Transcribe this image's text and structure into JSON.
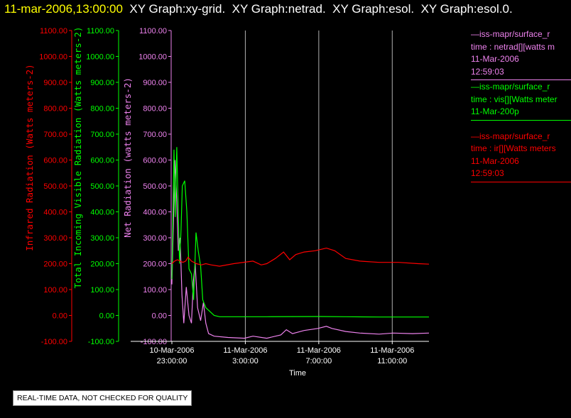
{
  "header": {
    "timestamp": "11-mar-2006,13:00:00",
    "graphs": [
      "XY Graph:xy-grid.",
      "XY Graph:netrad.",
      "XY Graph:esol.",
      "XY Graph:esol.0."
    ]
  },
  "notice": "REAL-TIME DATA, NOT CHECKED FOR QUALITY",
  "legend": [
    {
      "source": "—iss-mapr/surface_r",
      "variable": "time : netrad[][watts m",
      "date": "11-Mar-2006",
      "time": "12:59:03",
      "color": "#ee82ee"
    },
    {
      "source": "—iss-mapr/surface_r",
      "variable": "time : vis[][Watts meter",
      "date": "11-Mar-200p",
      "time": "",
      "color": "#00ff00"
    },
    {
      "source": "—iss-mapr/surface_r",
      "variable": "time : ir[][Watts meters",
      "date": "11-Mar-2006",
      "time": "12:59:03",
      "color": "#ff0000"
    }
  ],
  "chart_data": {
    "type": "line",
    "xlabel": "Time",
    "x_ticks": [
      {
        "label": [
          "10-Mar-2006",
          "23:00:00"
        ],
        "x": "2006-03-10 23:00"
      },
      {
        "label": [
          "11-Mar-2006",
          "3:00:00"
        ],
        "x": "2006-03-11 03:00"
      },
      {
        "label": [
          "11-Mar-2006",
          "7:00:00"
        ],
        "x": "2006-03-11 07:00"
      },
      {
        "label": [
          "11-Mar-2006",
          "11:00:00"
        ],
        "x": "2006-03-11 11:00"
      }
    ],
    "xlim": [
      "2006-03-10 23:00",
      "2006-03-11 13:00"
    ],
    "grid": "vertical",
    "axes": [
      {
        "id": "ir",
        "label": "Infrared Radiation (Watts meters-2)",
        "color": "#ff0000",
        "ylim": [
          -100,
          1100
        ],
        "ticks": [
          "-100.00",
          "0.00",
          "100.00",
          "200.00",
          "300.00",
          "400.00",
          "500.00",
          "600.00",
          "700.00",
          "800.00",
          "900.00",
          "1000.00",
          "1100.00"
        ]
      },
      {
        "id": "vis",
        "label": "Total Incoming Visible Radiation (Watts meters-2)",
        "color": "#00ff00",
        "ylim": [
          -100,
          1100
        ],
        "ticks": [
          "-100.00",
          "0.00",
          "100.00",
          "200.00",
          "300.00",
          "400.00",
          "500.00",
          "600.00",
          "700.00",
          "800.00",
          "900.00",
          "1000.00",
          "1100.00"
        ]
      },
      {
        "id": "netrad",
        "label": "Net Radiation (watts meters-2)",
        "color": "#ee82ee",
        "ylim": [
          -100,
          1100
        ],
        "ticks": [
          "-100.00",
          "0.00",
          "100.00",
          "200.00",
          "300.00",
          "400.00",
          "500.00",
          "600.00",
          "700.00",
          "800.00",
          "900.00",
          "1000.00",
          "1100.00"
        ]
      }
    ],
    "series": [
      {
        "name": "time : netrad[][watts m",
        "axis": "netrad",
        "color": "#ee82ee",
        "x": [
          "2006-03-10 23:00",
          "2006-03-10 23:10",
          "2006-03-10 23:16",
          "2006-03-10 23:21",
          "2006-03-10 23:27",
          "2006-03-10 23:33",
          "2006-03-10 23:39",
          "2006-03-10 23:47",
          "2006-03-10 23:56",
          "2006-03-11 00:04",
          "2006-03-11 00:10",
          "2006-03-11 00:16",
          "2006-03-11 00:24",
          "2006-03-11 00:34",
          "2006-03-11 00:43",
          "2006-03-11 00:51",
          "2006-03-11 01:00",
          "2006-03-11 01:18",
          "2006-03-11 02:03",
          "2006-03-11 02:57",
          "2006-03-11 03:25",
          "2006-03-11 04:10",
          "2006-03-11 04:56",
          "2006-03-11 05:14",
          "2006-03-11 05:34",
          "2006-03-11 06:12",
          "2006-03-11 06:57",
          "2006-03-11 07:25",
          "2006-03-11 07:43",
          "2006-03-11 08:28",
          "2006-03-11 09:14",
          "2006-03-11 10:17",
          "2006-03-11 11:03",
          "2006-03-11 12:06",
          "2006-03-11 13:00"
        ],
        "values": [
          120,
          600,
          440,
          250,
          300,
          80,
          -30,
          110,
          0,
          -30,
          130,
          200,
          30,
          -20,
          50,
          -30,
          -70,
          -80,
          -85,
          -88,
          -80,
          -88,
          -75,
          -55,
          -70,
          -58,
          -50,
          -42,
          -50,
          -62,
          -68,
          -72,
          -68,
          -70,
          -68
        ]
      },
      {
        "name": "time : vis[][Watts meter",
        "axis": "vis",
        "color": "#00ff00",
        "x": [
          "2006-03-10 23:00",
          "2006-03-10 23:07",
          "2006-03-10 23:11",
          "2006-03-10 23:16",
          "2006-03-10 23:20",
          "2006-03-10 23:25",
          "2006-03-10 23:30",
          "2006-03-10 23:34",
          "2006-03-10 23:42",
          "2006-03-10 23:49",
          "2006-03-10 23:56",
          "2006-03-11 00:04",
          "2006-03-11 00:11",
          "2006-03-11 00:19",
          "2006-03-11 00:26",
          "2006-03-11 00:34",
          "2006-03-11 00:41",
          "2006-03-11 00:51",
          "2006-03-11 01:00",
          "2006-03-11 01:18",
          "2006-03-11 01:36",
          "2006-03-11 02:03",
          "2006-03-11 04:10",
          "2006-03-11 07:03",
          "2006-03-11 08:28",
          "2006-03-11 10:17",
          "2006-03-11 13:00"
        ],
        "values": [
          140,
          640,
          380,
          650,
          450,
          200,
          330,
          500,
          520,
          400,
          180,
          160,
          60,
          320,
          250,
          190,
          60,
          30,
          20,
          0,
          -5,
          -5,
          -5,
          -4,
          -5,
          -6,
          -6
        ]
      },
      {
        "name": "time : ir[][Watts meters",
        "axis": "ir",
        "color": "#ff0000",
        "x": [
          "2006-03-10 23:00",
          "2006-03-10 23:09",
          "2006-03-10 23:18",
          "2006-03-10 23:27",
          "2006-03-10 23:36",
          "2006-03-10 23:45",
          "2006-03-10 23:53",
          "2006-03-11 00:04",
          "2006-03-11 00:20",
          "2006-03-11 00:36",
          "2006-03-11 00:51",
          "2006-03-11 01:09",
          "2006-03-11 01:36",
          "2006-03-11 02:22",
          "2006-03-11 03:25",
          "2006-03-11 03:52",
          "2006-03-11 04:10",
          "2006-03-11 04:38",
          "2006-03-11 05:05",
          "2006-03-11 05:25",
          "2006-03-11 05:45",
          "2006-03-11 06:12",
          "2006-03-11 06:48",
          "2006-03-11 07:25",
          "2006-03-11 07:52",
          "2006-03-11 08:28",
          "2006-03-11 09:14",
          "2006-03-11 10:17",
          "2006-03-11 11:21",
          "2006-03-11 12:24",
          "2006-03-11 13:00"
        ],
        "values": [
          200,
          210,
          215,
          210,
          205,
          210,
          225,
          210,
          200,
          195,
          200,
          195,
          190,
          200,
          210,
          195,
          200,
          220,
          245,
          215,
          235,
          245,
          250,
          260,
          250,
          220,
          210,
          205,
          205,
          200,
          198
        ]
      }
    ]
  }
}
